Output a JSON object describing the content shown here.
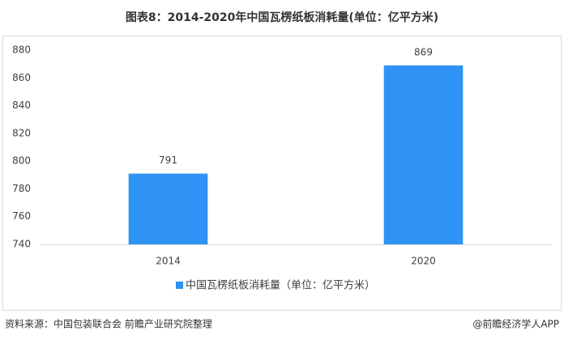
{
  "chart_data": {
    "type": "bar",
    "title": "图表8：2014-2020年中国瓦楞纸板消耗量(单位：亿平方米)",
    "categories": [
      "2014",
      "2020"
    ],
    "series": [
      {
        "name": "中国瓦楞纸板消耗量（单位：亿平方米）",
        "color": "#2e93f5",
        "values": [
          791,
          869
        ]
      }
    ],
    "ylim": [
      740,
      880
    ],
    "yticks": [
      740,
      760,
      780,
      800,
      820,
      840,
      860,
      880
    ],
    "grid": false
  },
  "source": "资料来源：中国包装联合会 前瞻产业研究院整理",
  "credit": "@前瞻经济学人APP"
}
